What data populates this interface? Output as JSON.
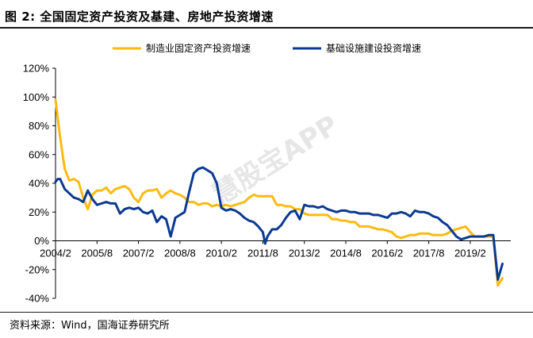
{
  "header": {
    "title": "图 2:  全国固定资产投资及基建、房地产投资增速"
  },
  "footer": {
    "source": "资料来源：Wind，国海证券研究所"
  },
  "watermark": {
    "text": "慧股宝APP"
  },
  "colors": {
    "manufacturing": "#FDBA11",
    "infrastructure": "#0B3A91",
    "axis": "#000000"
  },
  "chart_data": {
    "type": "line",
    "title": "",
    "xlabel": "",
    "ylabel": "",
    "ylim": [
      -0.4,
      1.2
    ],
    "y_ticks": [
      "120%",
      "100%",
      "80%",
      "60%",
      "40%",
      "20%",
      "0%",
      "-20%",
      "-40%"
    ],
    "x_ticks": [
      "2004/2",
      "2005/8",
      "2007/2",
      "2008/8",
      "2010/2",
      "2011/8",
      "2013/2",
      "2014/8",
      "2016/2",
      "2017/8",
      "2019/2"
    ],
    "legend_position": "top",
    "series": [
      {
        "name": "制造业固定资产投资增速",
        "color": "#FDBA11",
        "points": [
          [
            "2004-02",
            0.98
          ],
          [
            "2004-04",
            0.72
          ],
          [
            "2004-06",
            0.5
          ],
          [
            "2004-08",
            0.42
          ],
          [
            "2004-10",
            0.43
          ],
          [
            "2004-12",
            0.41
          ],
          [
            "2005-02",
            0.3
          ],
          [
            "2005-04",
            0.22
          ],
          [
            "2005-06",
            0.32
          ],
          [
            "2005-08",
            0.35
          ],
          [
            "2005-10",
            0.35
          ],
          [
            "2005-12",
            0.37
          ],
          [
            "2006-02",
            0.33
          ],
          [
            "2006-04",
            0.36
          ],
          [
            "2006-06",
            0.37
          ],
          [
            "2006-08",
            0.38
          ],
          [
            "2006-10",
            0.36
          ],
          [
            "2006-12",
            0.3
          ],
          [
            "2007-02",
            0.27
          ],
          [
            "2007-04",
            0.33
          ],
          [
            "2007-06",
            0.35
          ],
          [
            "2007-08",
            0.35
          ],
          [
            "2007-10",
            0.36
          ],
          [
            "2007-12",
            0.3
          ],
          [
            "2008-02",
            0.33
          ],
          [
            "2008-04",
            0.35
          ],
          [
            "2008-06",
            0.33
          ],
          [
            "2008-08",
            0.32
          ],
          [
            "2008-10",
            0.3
          ],
          [
            "2008-12",
            0.27
          ],
          [
            "2009-02",
            0.27
          ],
          [
            "2009-04",
            0.25
          ],
          [
            "2009-06",
            0.26
          ],
          [
            "2009-08",
            0.26
          ],
          [
            "2009-10",
            0.24
          ],
          [
            "2009-12",
            0.25
          ],
          [
            "2010-02",
            0.24
          ],
          [
            "2010-04",
            0.25
          ],
          [
            "2010-06",
            0.24
          ],
          [
            "2010-08",
            0.25
          ],
          [
            "2010-10",
            0.26
          ],
          [
            "2010-12",
            0.27
          ],
          [
            "2011-02",
            0.3
          ],
          [
            "2011-04",
            0.32
          ],
          [
            "2011-06",
            0.31
          ],
          [
            "2011-08",
            0.31
          ],
          [
            "2011-10",
            0.31
          ],
          [
            "2011-12",
            0.31
          ],
          [
            "2012-02",
            0.25
          ],
          [
            "2012-04",
            0.25
          ],
          [
            "2012-06",
            0.24
          ],
          [
            "2012-08",
            0.24
          ],
          [
            "2012-10",
            0.22
          ],
          [
            "2012-12",
            0.22
          ],
          [
            "2013-02",
            0.19
          ],
          [
            "2013-04",
            0.18
          ],
          [
            "2013-06",
            0.18
          ],
          [
            "2013-08",
            0.18
          ],
          [
            "2013-10",
            0.18
          ],
          [
            "2013-12",
            0.18
          ],
          [
            "2014-02",
            0.15
          ],
          [
            "2014-04",
            0.15
          ],
          [
            "2014-06",
            0.14
          ],
          [
            "2014-08",
            0.14
          ],
          [
            "2014-10",
            0.13
          ],
          [
            "2014-12",
            0.13
          ],
          [
            "2015-02",
            0.1
          ],
          [
            "2015-04",
            0.1
          ],
          [
            "2015-06",
            0.1
          ],
          [
            "2015-08",
            0.09
          ],
          [
            "2015-10",
            0.08
          ],
          [
            "2015-12",
            0.08
          ],
          [
            "2016-02",
            0.07
          ],
          [
            "2016-04",
            0.06
          ],
          [
            "2016-06",
            0.03
          ],
          [
            "2016-08",
            0.02
          ],
          [
            "2016-10",
            0.03
          ],
          [
            "2016-12",
            0.04
          ],
          [
            "2017-02",
            0.04
          ],
          [
            "2017-04",
            0.05
          ],
          [
            "2017-06",
            0.05
          ],
          [
            "2017-08",
            0.05
          ],
          [
            "2017-10",
            0.04
          ],
          [
            "2017-12",
            0.04
          ],
          [
            "2018-02",
            0.04
          ],
          [
            "2018-04",
            0.05
          ],
          [
            "2018-06",
            0.07
          ],
          [
            "2018-08",
            0.08
          ],
          [
            "2018-10",
            0.09
          ],
          [
            "2018-12",
            0.1
          ],
          [
            "2019-02",
            0.06
          ],
          [
            "2019-04",
            0.03
          ],
          [
            "2019-06",
            0.03
          ],
          [
            "2019-08",
            0.03
          ],
          [
            "2019-10",
            0.03
          ],
          [
            "2019-12",
            0.03
          ],
          [
            "2020-02",
            -0.31
          ],
          [
            "2020-04",
            -0.26
          ]
        ]
      },
      {
        "name": "基础设施建设投资增速",
        "color": "#0B3A91",
        "points": [
          [
            "2004-02",
            0.41
          ],
          [
            "2004-03",
            0.43
          ],
          [
            "2004-04",
            0.43
          ],
          [
            "2004-06",
            0.36
          ],
          [
            "2004-08",
            0.33
          ],
          [
            "2004-10",
            0.3
          ],
          [
            "2004-12",
            0.29
          ],
          [
            "2005-02",
            0.27
          ],
          [
            "2005-04",
            0.35
          ],
          [
            "2005-06",
            0.29
          ],
          [
            "2005-08",
            0.25
          ],
          [
            "2005-10",
            0.26
          ],
          [
            "2005-12",
            0.27
          ],
          [
            "2006-02",
            0.26
          ],
          [
            "2006-04",
            0.26
          ],
          [
            "2006-06",
            0.19
          ],
          [
            "2006-08",
            0.22
          ],
          [
            "2006-10",
            0.23
          ],
          [
            "2006-12",
            0.22
          ],
          [
            "2007-02",
            0.23
          ],
          [
            "2007-04",
            0.2
          ],
          [
            "2007-06",
            0.19
          ],
          [
            "2007-08",
            0.21
          ],
          [
            "2007-10",
            0.13
          ],
          [
            "2007-12",
            0.17
          ],
          [
            "2008-02",
            0.15
          ],
          [
            "2008-04",
            0.03
          ],
          [
            "2008-06",
            0.16
          ],
          [
            "2008-08",
            0.18
          ],
          [
            "2008-10",
            0.2
          ],
          [
            "2008-12",
            0.34
          ],
          [
            "2009-02",
            0.47
          ],
          [
            "2009-04",
            0.5
          ],
          [
            "2009-06",
            0.51
          ],
          [
            "2009-08",
            0.49
          ],
          [
            "2009-10",
            0.47
          ],
          [
            "2009-12",
            0.4
          ],
          [
            "2010-02",
            0.23
          ],
          [
            "2010-04",
            0.21
          ],
          [
            "2010-06",
            0.22
          ],
          [
            "2010-08",
            0.21
          ],
          [
            "2010-10",
            0.19
          ],
          [
            "2010-12",
            0.16
          ],
          [
            "2011-02",
            0.14
          ],
          [
            "2011-04",
            0.13
          ],
          [
            "2011-06",
            0.1
          ],
          [
            "2011-08",
            0.06
          ],
          [
            "2011-09",
            -0.02
          ],
          [
            "2011-10",
            0.03
          ],
          [
            "2011-12",
            0.08
          ],
          [
            "2012-02",
            0.08
          ],
          [
            "2012-04",
            0.11
          ],
          [
            "2012-06",
            0.16
          ],
          [
            "2012-08",
            0.2
          ],
          [
            "2012-10",
            0.21
          ],
          [
            "2012-12",
            0.15
          ],
          [
            "2013-02",
            0.25
          ],
          [
            "2013-04",
            0.24
          ],
          [
            "2013-06",
            0.24
          ],
          [
            "2013-08",
            0.23
          ],
          [
            "2013-10",
            0.24
          ],
          [
            "2013-12",
            0.22
          ],
          [
            "2014-02",
            0.21
          ],
          [
            "2014-04",
            0.2
          ],
          [
            "2014-06",
            0.21
          ],
          [
            "2014-08",
            0.21
          ],
          [
            "2014-10",
            0.2
          ],
          [
            "2014-12",
            0.2
          ],
          [
            "2015-02",
            0.19
          ],
          [
            "2015-04",
            0.19
          ],
          [
            "2015-06",
            0.19
          ],
          [
            "2015-08",
            0.18
          ],
          [
            "2015-10",
            0.18
          ],
          [
            "2015-12",
            0.17
          ],
          [
            "2016-02",
            0.16
          ],
          [
            "2016-04",
            0.19
          ],
          [
            "2016-06",
            0.19
          ],
          [
            "2016-08",
            0.2
          ],
          [
            "2016-10",
            0.19
          ],
          [
            "2016-12",
            0.17
          ],
          [
            "2017-02",
            0.21
          ],
          [
            "2017-04",
            0.2
          ],
          [
            "2017-06",
            0.2
          ],
          [
            "2017-08",
            0.19
          ],
          [
            "2017-10",
            0.17
          ],
          [
            "2017-12",
            0.16
          ],
          [
            "2018-02",
            0.13
          ],
          [
            "2018-04",
            0.11
          ],
          [
            "2018-06",
            0.07
          ],
          [
            "2018-08",
            0.03
          ],
          [
            "2018-10",
            0.01
          ],
          [
            "2018-12",
            0.02
          ],
          [
            "2019-02",
            0.03
          ],
          [
            "2019-04",
            0.03
          ],
          [
            "2019-06",
            0.03
          ],
          [
            "2019-08",
            0.03
          ],
          [
            "2019-10",
            0.04
          ],
          [
            "2019-12",
            0.04
          ],
          [
            "2020-02",
            -0.27
          ],
          [
            "2020-04",
            -0.16
          ]
        ]
      }
    ]
  }
}
